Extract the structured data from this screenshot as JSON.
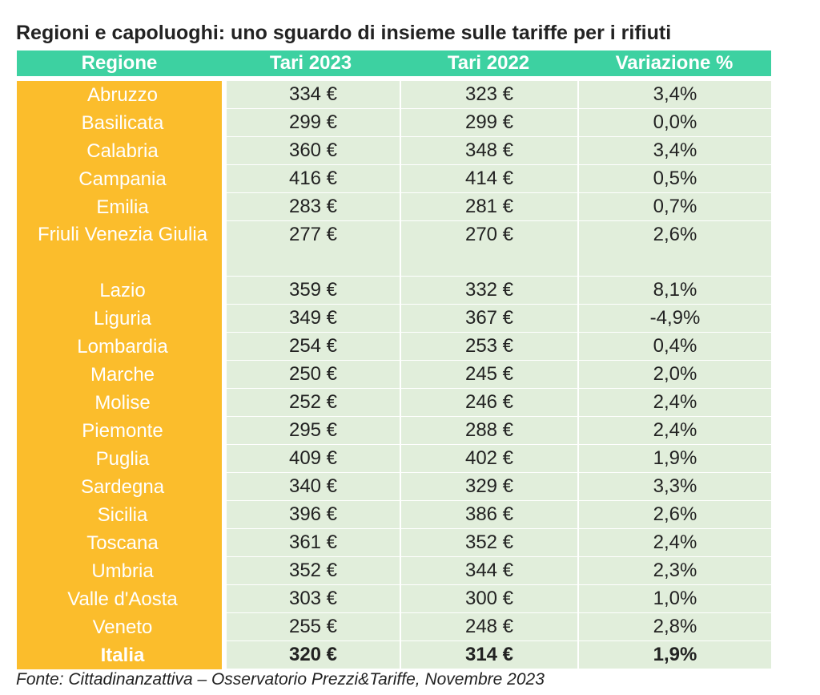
{
  "chart_data": {
    "type": "table",
    "title": "Regioni e capoluoghi: uno sguardo di insieme sulle tariffe per i rifiuti",
    "columns": [
      "Regione",
      "Tari 2023",
      "Tari 2022",
      "Variazione %"
    ],
    "rows": [
      {
        "regione": "Abruzzo",
        "tari_2023": "334 €",
        "tari_2022": "323 €",
        "variazione": "3,4%"
      },
      {
        "regione": "Basilicata",
        "tari_2023": "299 €",
        "tari_2022": "299 €",
        "variazione": "0,0%"
      },
      {
        "regione": "Calabria",
        "tari_2023": "360 €",
        "tari_2022": "348 €",
        "variazione": "3,4%"
      },
      {
        "regione": "Campania",
        "tari_2023": "416 €",
        "tari_2022": "414 €",
        "variazione": "0,5%"
      },
      {
        "regione": "Emilia",
        "tari_2023": "283 €",
        "tari_2022": "281 €",
        "variazione": "0,7%"
      },
      {
        "regione": "Friuli Venezia Giulia",
        "tari_2023": "277 €",
        "tari_2022": "270 €",
        "variazione": "2,6%"
      },
      {
        "regione": "Lazio",
        "tari_2023": "359 €",
        "tari_2022": "332 €",
        "variazione": "8,1%"
      },
      {
        "regione": "Liguria",
        "tari_2023": "349 €",
        "tari_2022": "367 €",
        "variazione": "-4,9%"
      },
      {
        "regione": "Lombardia",
        "tari_2023": "254 €",
        "tari_2022": "253 €",
        "variazione": "0,4%"
      },
      {
        "regione": "Marche",
        "tari_2023": "250 €",
        "tari_2022": "245 €",
        "variazione": "2,0%"
      },
      {
        "regione": "Molise",
        "tari_2023": "252 €",
        "tari_2022": "246 €",
        "variazione": "2,4%"
      },
      {
        "regione": "Piemonte",
        "tari_2023": "295 €",
        "tari_2022": "288 €",
        "variazione": "2,4%"
      },
      {
        "regione": "Puglia",
        "tari_2023": "409 €",
        "tari_2022": "402 €",
        "variazione": "1,9%"
      },
      {
        "regione": "Sardegna",
        "tari_2023": "340 €",
        "tari_2022": "329 €",
        "variazione": "3,3%"
      },
      {
        "regione": "Sicilia",
        "tari_2023": "396 €",
        "tari_2022": "386 €",
        "variazione": "2,6%"
      },
      {
        "regione": "Toscana",
        "tari_2023": "361 €",
        "tari_2022": "352 €",
        "variazione": "2,4%"
      },
      {
        "regione": "Umbria",
        "tari_2023": "352 €",
        "tari_2022": "344 €",
        "variazione": "2,3%"
      },
      {
        "regione": "Valle d'Aosta",
        "tari_2023": "303 €",
        "tari_2022": "300 €",
        "variazione": "1,0%"
      },
      {
        "regione": "Veneto",
        "tari_2023": "255 €",
        "tari_2022": "248 €",
        "variazione": "2,8%"
      },
      {
        "regione": "Italia",
        "tari_2023": "320 €",
        "tari_2022": "314 €",
        "variazione": "1,9%",
        "total": true
      }
    ],
    "source": "Fonte: Cittadinanzattiva – Osservatorio Prezzi&Tariffe, Novembre 2023",
    "colors": {
      "header": "#3dd1a1",
      "region_column": "#fbbd2c",
      "cells": "#e1eedb"
    }
  }
}
